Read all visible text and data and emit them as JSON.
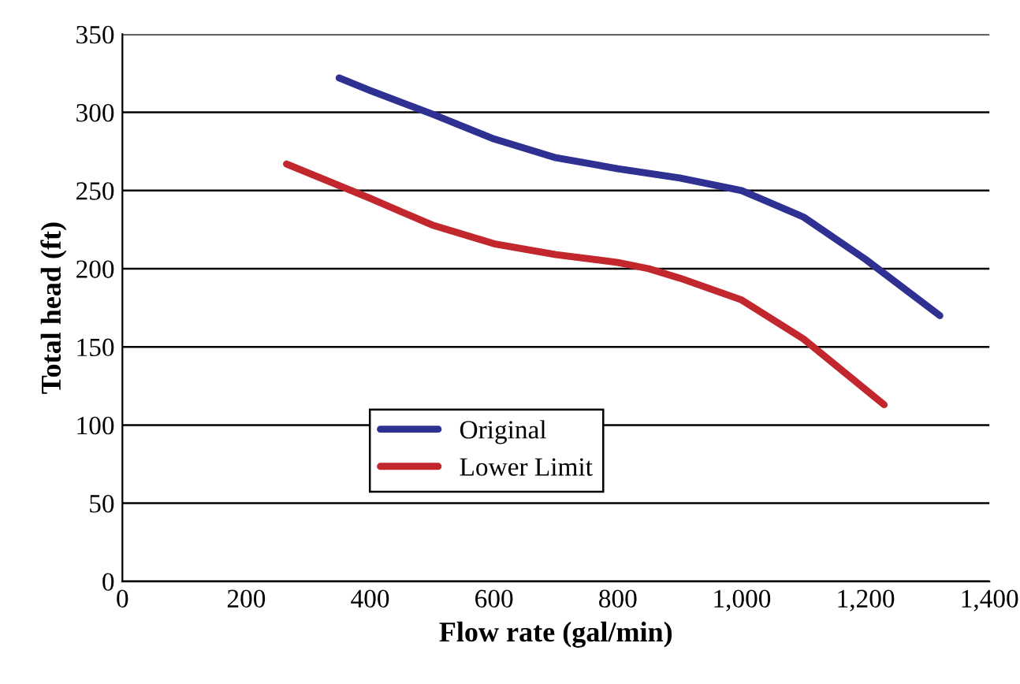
{
  "chart_data": {
    "type": "line",
    "xlabel": "Flow rate (gal/min)",
    "ylabel": "Total head (ft)",
    "xlim": [
      0,
      1400
    ],
    "xticks": [
      0,
      200,
      400,
      600,
      800,
      {
        "value": 1000,
        "label": "1,000"
      },
      {
        "value": 1200,
        "label": "1,200"
      },
      {
        "value": 1400,
        "label": "1,400"
      }
    ],
    "ylim": [
      0,
      350
    ],
    "yticks": [
      0,
      50,
      100,
      150,
      200,
      250,
      300,
      350
    ],
    "grid": "y",
    "legend": "bottom",
    "marker": "none",
    "line_style": "solid",
    "series": [
      {
        "name": "Original",
        "color": "#2e3192",
        "x": [
          350,
          400,
          500,
          600,
          700,
          800,
          900,
          1000,
          1100,
          1200,
          1320
        ],
        "values": [
          322,
          314,
          299,
          283,
          271,
          264,
          258,
          250,
          233,
          206,
          170
        ]
      },
      {
        "name": "Lower Limit",
        "color": "#c1272d",
        "x": [
          265,
          400,
          500,
          600,
          700,
          800,
          850,
          900,
          1000,
          1100,
          1230
        ],
        "values": [
          267,
          245,
          228,
          216,
          209,
          204,
          200,
          194,
          180,
          155,
          113
        ]
      }
    ]
  }
}
